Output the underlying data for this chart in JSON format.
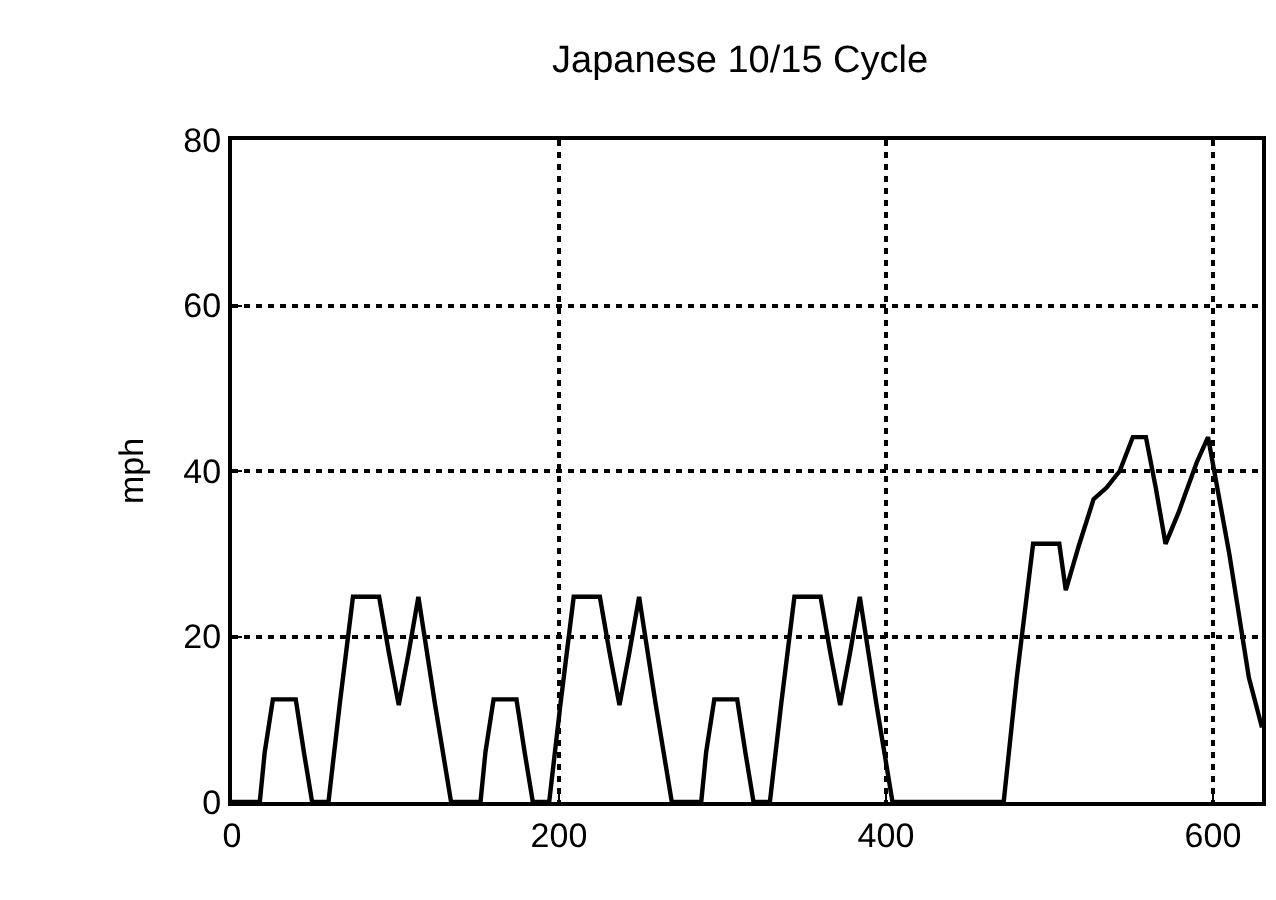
{
  "chart_data": {
    "type": "line",
    "title": "Japanese 10/15 Cycle",
    "ylabel": "mph",
    "x": [
      0,
      17,
      20,
      25,
      39,
      44,
      49,
      59,
      66,
      74,
      90,
      96,
      102,
      108,
      114,
      124,
      134,
      152,
      155,
      160,
      174,
      179,
      184,
      194,
      201,
      209,
      225,
      231,
      237,
      243,
      249,
      259,
      269,
      287,
      290,
      295,
      309,
      314,
      319,
      329,
      336,
      344,
      360,
      366,
      372,
      378,
      384,
      394,
      404,
      472,
      480,
      490,
      506,
      510,
      518,
      527,
      535,
      543,
      551,
      559,
      565,
      571,
      579,
      590,
      597,
      610,
      622,
      630
    ],
    "series": [
      {
        "color": "#000000",
        "values": [
          0,
          0,
          6,
          12.4,
          12.4,
          6,
          0,
          0,
          12,
          24.8,
          24.8,
          18,
          11.7,
          18,
          24.8,
          12,
          0,
          0,
          6,
          12.4,
          12.4,
          6,
          0,
          0,
          12,
          24.8,
          24.8,
          18,
          11.7,
          18,
          24.8,
          12,
          0,
          0,
          6,
          12.4,
          12.4,
          6,
          0,
          0,
          12,
          24.8,
          24.8,
          18,
          11.7,
          18,
          24.8,
          12,
          0,
          0,
          15,
          31.2,
          31.2,
          25.6,
          31,
          36.6,
          38,
          40,
          44.1,
          44.1,
          38,
          31.2,
          35,
          41,
          44.1,
          30,
          15,
          9
        ]
      }
    ],
    "xlim": [
      0,
      630
    ],
    "ylim": [
      0,
      80
    ],
    "xticks": [
      0,
      200,
      400,
      600
    ],
    "yticks": [
      0,
      20,
      40,
      60,
      80
    ],
    "grid": true,
    "line_style": "solid",
    "marker": "none"
  }
}
